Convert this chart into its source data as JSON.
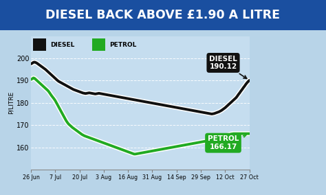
{
  "title": "DIESEL BACK ABOVE £1.90 A LITRE",
  "title_bg": "#1a4fa0",
  "title_color": "#ffffff",
  "ylabel": "P/LITRE",
  "ylim": [
    150,
    210
  ],
  "yticks": [
    160,
    170,
    180,
    190,
    200
  ],
  "x_labels": [
    "26 Jun",
    "7 Jul",
    "20 Jul",
    "3 Aug",
    "16 Aug",
    "31 Aug",
    "14 Sep",
    "29 Sep",
    "12 Oct",
    "27 Oct"
  ],
  "diesel_label": "DIESEL",
  "petrol_label": "PETROL",
  "diesel_color": "#111111",
  "petrol_color": "#22aa22",
  "bg_color": "#b8d4e8",
  "plot_bg": "#c5ddef",
  "diesel_data": [
    197.5,
    197.8,
    198.2,
    198.3,
    198.1,
    197.8,
    197.4,
    197.0,
    196.6,
    196.2,
    195.8,
    195.4,
    195.0,
    194.5,
    194.0,
    193.5,
    193.0,
    192.5,
    192.0,
    191.5,
    191.0,
    190.5,
    190.0,
    189.6,
    189.3,
    189.0,
    188.7,
    188.4,
    188.1,
    187.8,
    187.5,
    187.2,
    186.9,
    186.6,
    186.3,
    186.0,
    185.8,
    185.6,
    185.4,
    185.2,
    185.0,
    184.8,
    184.6,
    184.4,
    184.3,
    184.2,
    184.3,
    184.4,
    184.5,
    184.4,
    184.3,
    184.2,
    184.1,
    184.0,
    184.1,
    184.2,
    184.3,
    184.2,
    184.1,
    184.0,
    183.9,
    183.8,
    183.7,
    183.6,
    183.5,
    183.4,
    183.3,
    183.2,
    183.1,
    183.0,
    182.9,
    182.8,
    182.7,
    182.6,
    182.5,
    182.4,
    182.3,
    182.2,
    182.1,
    182.0,
    181.9,
    181.8,
    181.7,
    181.6,
    181.5,
    181.4,
    181.3,
    181.2,
    181.1,
    181.0,
    180.9,
    180.8,
    180.7,
    180.6,
    180.5,
    180.4,
    180.3,
    180.2,
    180.1,
    180.0,
    179.9,
    179.8,
    179.7,
    179.6,
    179.5,
    179.4,
    179.3,
    179.2,
    179.1,
    179.0,
    178.9,
    178.8,
    178.7,
    178.6,
    178.5,
    178.4,
    178.3,
    178.2,
    178.1,
    178.0,
    177.9,
    177.8,
    177.7,
    177.6,
    177.5,
    177.4,
    177.3,
    177.2,
    177.1,
    177.0,
    176.9,
    176.8,
    176.7,
    176.6,
    176.5,
    176.4,
    176.3,
    176.2,
    176.1,
    176.0,
    175.9,
    175.8,
    175.7,
    175.6,
    175.5,
    175.4,
    175.3,
    175.2,
    175.1,
    175.0,
    175.1,
    175.2,
    175.4,
    175.6,
    175.8,
    176.0,
    176.3,
    176.6,
    177.0,
    177.4,
    177.8,
    178.3,
    178.8,
    179.3,
    179.8,
    180.3,
    180.8,
    181.3,
    181.8,
    182.3,
    183.0,
    183.8,
    184.5,
    185.3,
    186.0,
    186.8,
    187.5,
    188.3,
    189.0,
    189.6,
    190.12
  ],
  "petrol_data": [
    190.5,
    190.8,
    191.2,
    191.0,
    190.5,
    190.0,
    189.5,
    189.0,
    188.5,
    188.0,
    187.5,
    187.0,
    186.5,
    186.0,
    185.5,
    184.8,
    184.0,
    183.2,
    182.5,
    181.8,
    181.0,
    180.0,
    179.0,
    178.0,
    177.0,
    176.0,
    175.0,
    174.0,
    173.0,
    172.0,
    171.2,
    170.5,
    170.0,
    169.5,
    169.0,
    168.6,
    168.2,
    167.8,
    167.4,
    167.0,
    166.6,
    166.2,
    165.8,
    165.5,
    165.2,
    165.0,
    164.8,
    164.6,
    164.4,
    164.2,
    164.0,
    163.8,
    163.6,
    163.4,
    163.2,
    163.0,
    162.8,
    162.6,
    162.4,
    162.2,
    162.0,
    161.8,
    161.6,
    161.4,
    161.2,
    161.0,
    160.8,
    160.6,
    160.4,
    160.2,
    160.0,
    159.8,
    159.6,
    159.4,
    159.2,
    159.0,
    158.8,
    158.6,
    158.4,
    158.2,
    158.0,
    157.8,
    157.6,
    157.4,
    157.2,
    157.0,
    157.0,
    157.1,
    157.2,
    157.3,
    157.4,
    157.5,
    157.6,
    157.7,
    157.8,
    157.9,
    158.0,
    158.1,
    158.2,
    158.3,
    158.4,
    158.5,
    158.6,
    158.7,
    158.8,
    158.9,
    159.0,
    159.1,
    159.2,
    159.3,
    159.4,
    159.5,
    159.6,
    159.7,
    159.8,
    159.9,
    160.0,
    160.1,
    160.2,
    160.3,
    160.4,
    160.5,
    160.6,
    160.7,
    160.8,
    160.9,
    161.0,
    161.1,
    161.2,
    161.3,
    161.4,
    161.5,
    161.6,
    161.7,
    161.8,
    161.9,
    162.0,
    162.1,
    162.2,
    162.3,
    162.4,
    162.5,
    162.6,
    162.7,
    162.8,
    162.9,
    163.0,
    163.1,
    163.2,
    163.3,
    163.4,
    163.5,
    163.6,
    163.7,
    163.8,
    163.9,
    164.0,
    164.2,
    164.5,
    164.8,
    165.0,
    165.2,
    165.4,
    165.6,
    165.8,
    166.0,
    166.1,
    166.17,
    166.17,
    166.17,
    166.17,
    166.17,
    166.17,
    166.17,
    166.17,
    166.17,
    166.17,
    166.17,
    166.17,
    166.17,
    166.17
  ]
}
